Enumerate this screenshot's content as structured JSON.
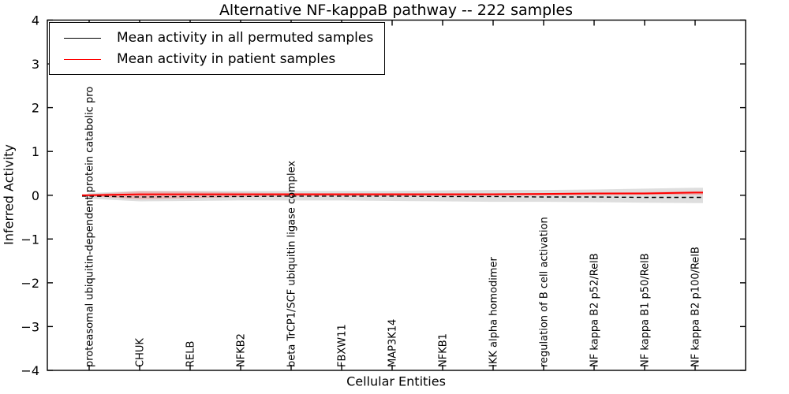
{
  "chart_data": {
    "type": "line",
    "title": "Alternative NF-kappaB pathway -- 222 samples",
    "xlabel": "Cellular Entities",
    "ylabel": "Inferred Activity",
    "ylim": [
      -4,
      4
    ],
    "yticks": [
      -4,
      -3,
      -2,
      -1,
      0,
      1,
      2,
      3,
      4
    ],
    "grid": false,
    "legend_position": "upper left",
    "categories": [
      "proteasomal ubiquitin-dependent protein catabolic pro",
      "CHUK",
      "RELB",
      "NFKB2",
      "beta TrCP1/SCF ubiquitin ligase complex",
      "FBXW11",
      "MAP3K14",
      "NFKB1",
      "IKK alpha homodimer",
      "regulation of B cell activation",
      "NF kappa B2 p52/RelB",
      "NF kappa B1 p50/RelB",
      "NF kappa B2 p100/RelB"
    ],
    "series": [
      {
        "name": "Mean activity in all permuted samples",
        "color": "#000000",
        "line_style": "dashed",
        "values": [
          -0.02,
          -0.04,
          -0.03,
          -0.03,
          -0.02,
          -0.02,
          -0.02,
          -0.03,
          -0.03,
          -0.04,
          -0.04,
          -0.05,
          -0.05
        ],
        "band_upper": [
          0.05,
          0.1,
          0.1,
          0.1,
          0.1,
          0.1,
          0.1,
          0.11,
          0.12,
          0.12,
          0.13,
          0.15,
          0.17
        ],
        "band_lower": [
          -0.08,
          -0.14,
          -0.13,
          -0.12,
          -0.12,
          -0.12,
          -0.13,
          -0.14,
          -0.15,
          -0.15,
          -0.16,
          -0.17,
          -0.18
        ],
        "band_color": "#a8a8a8",
        "band_opacity": 0.38
      },
      {
        "name": "Mean activity in patient samples",
        "color": "#ff0000",
        "line_style": "solid",
        "values": [
          0.0,
          0.02,
          0.02,
          0.02,
          0.02,
          0.02,
          0.02,
          0.02,
          0.02,
          0.03,
          0.04,
          0.04,
          0.06
        ],
        "band_upper": [
          0.02,
          0.09,
          0.08,
          0.06,
          0.05,
          0.05,
          0.05,
          0.05,
          0.05,
          0.05,
          0.06,
          0.07,
          0.09
        ],
        "band_lower": [
          -0.02,
          -0.09,
          -0.07,
          -0.04,
          -0.02,
          -0.02,
          -0.02,
          -0.02,
          -0.01,
          -0.01,
          0.0,
          0.01,
          0.01
        ],
        "band_color": "#f08080",
        "band_opacity": 0.45
      }
    ]
  }
}
